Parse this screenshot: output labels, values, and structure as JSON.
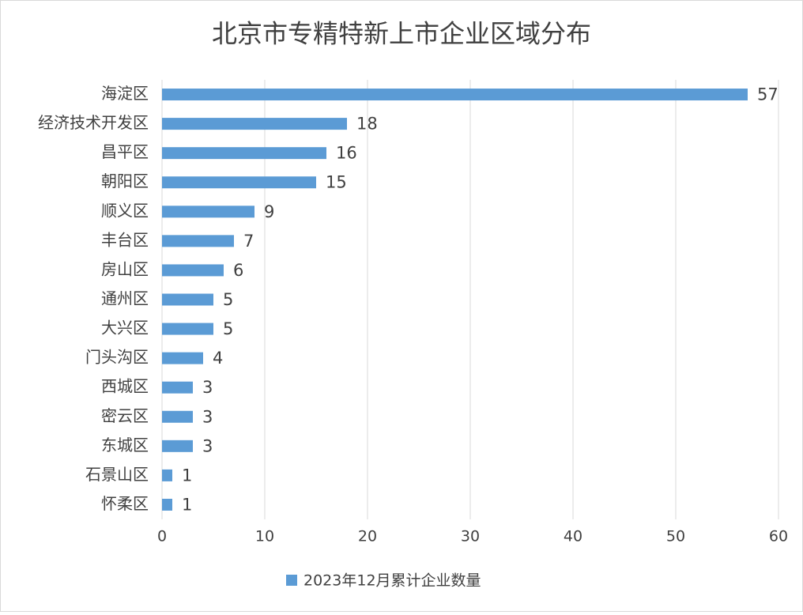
{
  "chart_data": {
    "type": "bar",
    "orientation": "horizontal",
    "title": "北京市专精特新上市企业区域分布",
    "categories": [
      "海淀区",
      "经济技术开发区",
      "昌平区",
      "朝阳区",
      "顺义区",
      "丰台区",
      "房山区",
      "通州区",
      "大兴区",
      "门头沟区",
      "西城区",
      "密云区",
      "东城区",
      "石景山区",
      "怀柔区"
    ],
    "series": [
      {
        "name": "2023年12月累计企业数量",
        "color": "#5b9bd5",
        "values": [
          57,
          18,
          16,
          15,
          9,
          7,
          6,
          5,
          5,
          4,
          3,
          3,
          3,
          1,
          1
        ]
      }
    ],
    "xlim": [
      0,
      60
    ],
    "xticks": [
      0,
      10,
      20,
      30,
      40,
      50,
      60
    ],
    "grid": true,
    "legend": "bottom"
  }
}
